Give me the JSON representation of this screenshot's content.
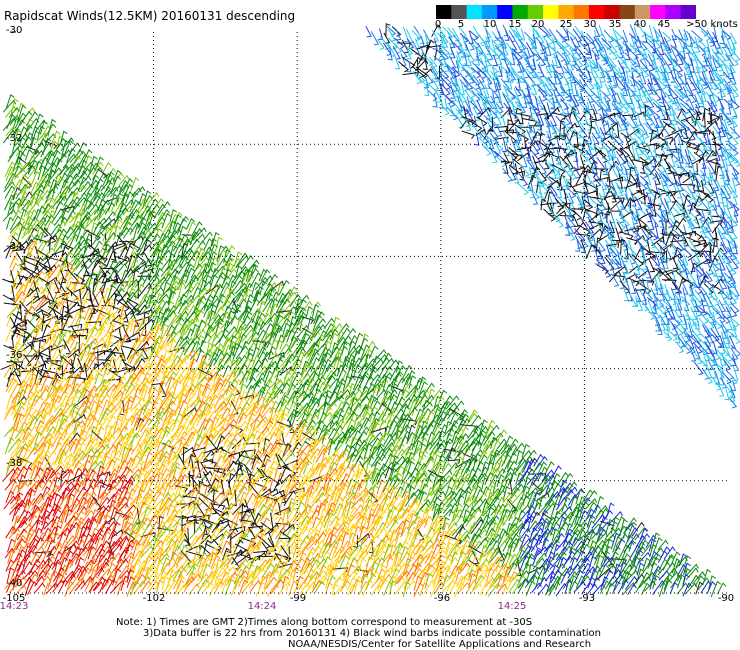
{
  "title": "Rapidscat Winds(12.5KM) 20160131 descending",
  "colorbar": {
    "colors": [
      "#000000",
      "#555555",
      "#00e5ff",
      "#0099ff",
      "#0000ff",
      "#00aa00",
      "#66cc00",
      "#ffff00",
      "#ffaa00",
      "#ff7700",
      "#ff0000",
      "#cc0000",
      "#8b4513",
      "#cc9966",
      "#ff00ff",
      "#aa00ff",
      "#6600cc"
    ],
    "labels": [
      "0",
      "5",
      "10",
      "15",
      "20",
      "25",
      "30",
      "35",
      "40",
      "45",
      ">50 knots"
    ]
  },
  "lat_labels": [
    "-30",
    "-32",
    "-34",
    "-36",
    "-38",
    "-40"
  ],
  "lon_labels": [
    "-105",
    "-102",
    "-99",
    "-96",
    "-93",
    "-90"
  ],
  "time_labels": [
    "14:23",
    "14:24",
    "14:25"
  ],
  "notes": [
    "Note: 1) Times are GMT  2)Times along bottom correspond to measurement at -30S",
    "3)Data buffer is 22 hrs from 20160131  4) Black wind barbs indicate possible contamination",
    "NOAA/NESDIS/Center for Satellite Applications and Research"
  ],
  "map": {
    "lat_range": [
      -40,
      -30
    ],
    "lon_range": [
      -105,
      -90
    ]
  }
}
